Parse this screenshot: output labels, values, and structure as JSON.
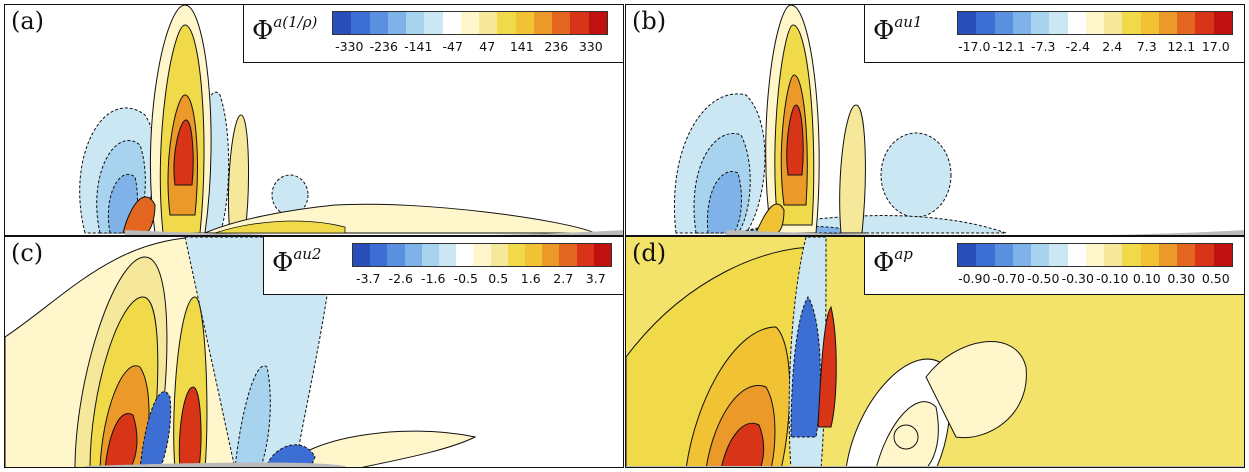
{
  "palette": [
    "#2b4fb8",
    "#3d6ed3",
    "#5b8fe0",
    "#7fb2e8",
    "#a7d3ef",
    "#cbe7f3",
    "#ffffff",
    "#fff6cc",
    "#f6e89a",
    "#f0da4a",
    "#f0c234",
    "#eb9a2a",
    "#e2661f",
    "#d83418",
    "#c01010"
  ],
  "panels": [
    {
      "label": "(a)",
      "symbol": "Φ",
      "superscript": "a(1/ρ)",
      "ticks": [
        "-330",
        "-236",
        "-141",
        "-47",
        "47",
        "141",
        "236",
        "330"
      ],
      "background": "#ffffff"
    },
    {
      "label": "(b)",
      "symbol": "Φ",
      "superscript": "au1",
      "ticks": [
        "-17.0",
        "-12.1",
        "-7.3",
        "-2.4",
        "2.4",
        "7.3",
        "12.1",
        "17.0"
      ],
      "background": "#ffffff"
    },
    {
      "label": "(c)",
      "symbol": "Φ",
      "superscript": "au2",
      "ticks": [
        "-3.7",
        "-2.6",
        "-1.6",
        "-0.5",
        "0.5",
        "1.6",
        "2.7",
        "3.7"
      ],
      "background": "#ffffff"
    },
    {
      "label": "(d)",
      "symbol": "Φ",
      "superscript": "ap",
      "ticks": [
        "-0.90",
        "-0.70",
        "-0.50",
        "-0.30",
        "-0.10",
        "0.10",
        "0.30",
        "0.50"
      ],
      "background": "#f4e36a"
    }
  ]
}
